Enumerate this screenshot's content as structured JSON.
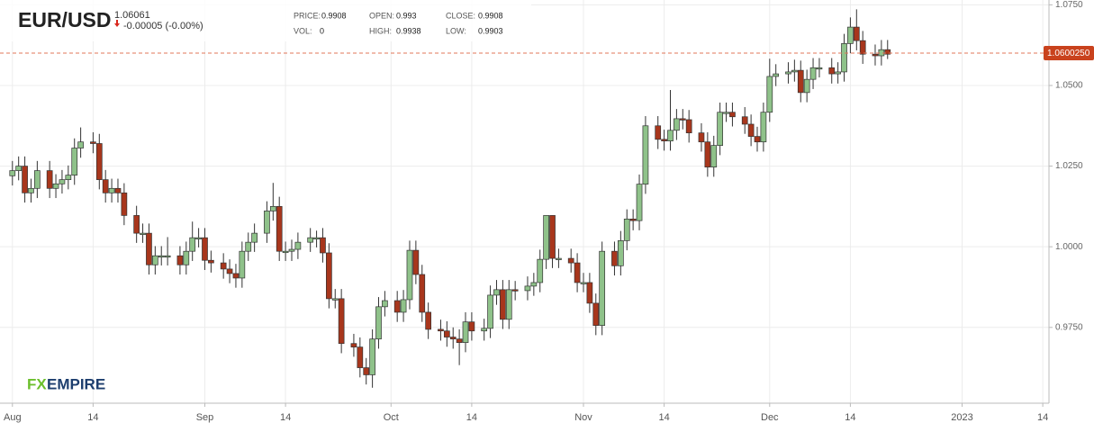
{
  "header": {
    "symbol": "EUR/USD",
    "price": "1.06061",
    "change": "-0.00005 (-0.00%)",
    "stats": [
      {
        "label": "PRICE:",
        "value": "0.9908"
      },
      {
        "label": "OPEN:",
        "value": "0.993"
      },
      {
        "label": "CLOSE:",
        "value": "0.9908"
      },
      {
        "label": "VOL:",
        "value": "0"
      },
      {
        "label": "HIGH:",
        "value": "0.9938"
      },
      {
        "label": "LOW:",
        "value": "0.9903"
      }
    ]
  },
  "logo": [
    "FX",
    "EMPIRE"
  ],
  "chart_data": {
    "type": "candlestick",
    "up_color": "#8fc28a",
    "down_color": "#a8361c",
    "grid": true,
    "last_price": {
      "value": 1.060025,
      "label": "1.0600250"
    },
    "ylim": [
      0.9515,
      1.0765
    ],
    "yticks": [
      {
        "value": 0.975,
        "label": "0.9750"
      },
      {
        "value": 1.0,
        "label": "1.0000"
      },
      {
        "value": 1.025,
        "label": "1.0250"
      },
      {
        "value": 1.05,
        "label": "1.0500"
      },
      {
        "value": 1.075,
        "label": "1.0750"
      }
    ],
    "xlim": [
      "2022-07-30",
      "2023-01-15"
    ],
    "xticks": [
      {
        "value": "2022-08-01",
        "label": "Aug"
      },
      {
        "value": "2022-08-14",
        "label": "14"
      },
      {
        "value": "2022-09-01",
        "label": "Sep"
      },
      {
        "value": "2022-09-14",
        "label": "14"
      },
      {
        "value": "2022-10-01",
        "label": "Oct"
      },
      {
        "value": "2022-10-14",
        "label": "14"
      },
      {
        "value": "2022-11-01",
        "label": "Nov"
      },
      {
        "value": "2022-11-14",
        "label": "14"
      },
      {
        "value": "2022-12-01",
        "label": "Dec"
      },
      {
        "value": "2022-12-14",
        "label": "14"
      },
      {
        "value": "2023-01-01",
        "label": "2023"
      },
      {
        "value": "2023-01-14",
        "label": "14"
      }
    ],
    "x": [
      "2022-08-01",
      "2022-08-02",
      "2022-08-03",
      "2022-08-04",
      "2022-08-05",
      "2022-08-07",
      "2022-08-08",
      "2022-08-09",
      "2022-08-10",
      "2022-08-11",
      "2022-08-12",
      "2022-08-14",
      "2022-08-15",
      "2022-08-16",
      "2022-08-17",
      "2022-08-18",
      "2022-08-19",
      "2022-08-21",
      "2022-08-22",
      "2022-08-23",
      "2022-08-24",
      "2022-08-25",
      "2022-08-26",
      "2022-08-28",
      "2022-08-29",
      "2022-08-30",
      "2022-08-31",
      "2022-09-01",
      "2022-09-02",
      "2022-09-04",
      "2022-09-05",
      "2022-09-06",
      "2022-09-07",
      "2022-09-08",
      "2022-09-09",
      "2022-09-11",
      "2022-09-12",
      "2022-09-13",
      "2022-09-14",
      "2022-09-15",
      "2022-09-16",
      "2022-09-18",
      "2022-09-19",
      "2022-09-20",
      "2022-09-21",
      "2022-09-22",
      "2022-09-23",
      "2022-09-25",
      "2022-09-26",
      "2022-09-27",
      "2022-09-28",
      "2022-09-29",
      "2022-09-30",
      "2022-10-02",
      "2022-10-03",
      "2022-10-04",
      "2022-10-05",
      "2022-10-06",
      "2022-10-07",
      "2022-10-09",
      "2022-10-10",
      "2022-10-11",
      "2022-10-12",
      "2022-10-13",
      "2022-10-14",
      "2022-10-16",
      "2022-10-17",
      "2022-10-18",
      "2022-10-19",
      "2022-10-20",
      "2022-10-21",
      "2022-10-23",
      "2022-10-24",
      "2022-10-25",
      "2022-10-26",
      "2022-10-27",
      "2022-10-28",
      "2022-10-30",
      "2022-10-31",
      "2022-11-01",
      "2022-11-02",
      "2022-11-03",
      "2022-11-04",
      "2022-11-06",
      "2022-11-07",
      "2022-11-08",
      "2022-11-09",
      "2022-11-10",
      "2022-11-11",
      "2022-11-13",
      "2022-11-14",
      "2022-11-15",
      "2022-11-16",
      "2022-11-17",
      "2022-11-18",
      "2022-11-20",
      "2022-11-21",
      "2022-11-22",
      "2022-11-23",
      "2022-11-24",
      "2022-11-25",
      "2022-11-27",
      "2022-11-28",
      "2022-11-29",
      "2022-11-30",
      "2022-12-01",
      "2022-12-02",
      "2022-12-04",
      "2022-12-05",
      "2022-12-06",
      "2022-12-07",
      "2022-12-08",
      "2022-12-09",
      "2022-12-11",
      "2022-12-12",
      "2022-12-13",
      "2022-12-14",
      "2022-12-15",
      "2022-12-16",
      "2022-12-18",
      "2022-12-19",
      "2022-12-20"
    ],
    "open": [
      1.022,
      1.0236,
      1.025,
      1.0167,
      1.0181,
      1.0236,
      1.0181,
      1.0195,
      1.0208,
      1.0222,
      1.0306,
      1.0325,
      1.032,
      1.0208,
      1.0167,
      1.0181,
      1.0167,
      1.0097,
      1.0042,
      1.0042,
      0.9944,
      0.9972,
      0.9972,
      0.9972,
      0.9944,
      0.9986,
      1.0028,
      1.0028,
      0.9958,
      0.995,
      0.9931,
      0.9917,
      0.9903,
      0.9986,
      1.0014,
      1.0042,
      1.0111,
      1.0125,
      0.9986,
      0.9986,
      0.9992,
      1.0014,
      1.0028,
      1.0028,
      0.9981,
      0.9839,
      0.9839,
      0.97,
      0.9689,
      0.9625,
      0.9603,
      0.9714,
      0.9814,
      0.9833,
      0.9797,
      0.9836,
      0.9989,
      0.9914,
      0.9797,
      0.9744,
      0.9739,
      0.972,
      0.9714,
      0.9703,
      0.9767,
      0.9739,
      0.9747,
      0.985,
      0.9867,
      0.9775,
      0.9867,
      0.9864,
      0.9878,
      0.9889,
      0.9961,
      1.0097,
      0.9964,
      0.9964,
      0.995,
      0.9889,
      0.9889,
      0.9825,
      0.9756,
      0.9986,
      0.9941,
      1.0019,
      1.0086,
      1.0081,
      1.0194,
      1.0375,
      1.0333,
      1.0328,
      1.0361,
      1.0397,
      1.0394,
      1.0353,
      1.0325,
      1.0247,
      1.0314,
      1.0417,
      1.0417,
      1.0403,
      1.038,
      1.0342,
      1.0325,
      1.0417,
      1.0528,
      1.0536,
      1.0542,
      1.0547,
      1.0478,
      1.0519,
      1.0555,
      1.0555,
      1.0536,
      1.0542,
      1.063,
      1.0681,
      1.0639,
      1.0597,
      1.0592,
      1.0611
    ],
    "high": [
      1.0266,
      1.028,
      1.028,
      1.0211,
      1.0266,
      1.0266,
      1.0225,
      1.0238,
      1.0252,
      1.0336,
      1.037,
      1.0355,
      1.035,
      1.0238,
      1.0211,
      1.0211,
      1.0197,
      1.0127,
      1.0072,
      1.0072,
      1.0002,
      1.0002,
      1.003,
      1.0002,
      1.0016,
      1.0078,
      1.0058,
      1.0058,
      0.9988,
      0.998,
      0.9961,
      0.9947,
      1.0016,
      1.0044,
      1.0072,
      1.0141,
      1.0198,
      1.0155,
      1.0016,
      1.0022,
      1.0044,
      1.0058,
      1.005,
      1.0058,
      1.0011,
      0.9869,
      0.9869,
      0.973,
      0.9719,
      0.9655,
      0.9744,
      0.9844,
      0.9863,
      0.9863,
      0.9866,
      1.0019,
      1.0019,
      0.9944,
      0.9827,
      0.9774,
      0.9769,
      0.975,
      0.9744,
      0.9797,
      0.9797,
      0.9777,
      0.988,
      0.9897,
      0.9897,
      0.9897,
      0.9894,
      0.9908,
      0.9919,
      0.9991,
      1.0097,
      1.0097,
      0.9994,
      0.9994,
      0.998,
      0.9919,
      0.9919,
      0.9855,
      1.0016,
      1.0016,
      1.0049,
      1.0116,
      1.0116,
      1.0224,
      1.0405,
      1.0405,
      1.0363,
      1.0486,
      1.0427,
      1.0427,
      1.0424,
      1.0383,
      1.0355,
      1.0344,
      1.0447,
      1.0447,
      1.0447,
      1.0433,
      1.041,
      1.0372,
      1.0447,
      1.0583,
      1.0566,
      1.0572,
      1.058,
      1.0577,
      1.0549,
      1.0585,
      1.0585,
      1.0585,
      1.0572,
      1.066,
      1.0711,
      1.0736,
      1.0669,
      1.0627,
      1.0641,
      1.0641
    ],
    "low": [
      1.019,
      1.0206,
      1.0137,
      1.0137,
      1.0151,
      1.0151,
      1.0151,
      1.0165,
      1.0178,
      1.0192,
      1.0276,
      1.029,
      1.0178,
      1.0137,
      1.0137,
      1.0137,
      1.0067,
      1.0012,
      1.0012,
      0.9914,
      0.9914,
      0.9942,
      0.9942,
      0.9914,
      0.9914,
      0.9956,
      0.9998,
      0.9928,
      0.992,
      0.9901,
      0.9887,
      0.9873,
      0.9873,
      0.9956,
      0.9984,
      1.0012,
      1.0081,
      0.9956,
      0.9956,
      0.9956,
      0.9962,
      0.9984,
      0.9998,
      0.9951,
      0.9809,
      0.9809,
      0.967,
      0.9659,
      0.9595,
      0.9573,
      0.9563,
      0.9684,
      0.9784,
      0.9767,
      0.9767,
      0.9806,
      0.9884,
      0.9767,
      0.9714,
      0.9709,
      0.969,
      0.9684,
      0.9633,
      0.9673,
      0.9709,
      0.9709,
      0.9717,
      0.982,
      0.9745,
      0.9745,
      0.9834,
      0.9834,
      0.9848,
      0.9859,
      0.9931,
      0.9934,
      0.9934,
      0.992,
      0.9859,
      0.9859,
      0.9795,
      0.9726,
      0.9726,
      0.9911,
      0.9911,
      0.9989,
      1.0051,
      1.0051,
      1.0164,
      1.0303,
      1.0298,
      1.0298,
      1.0331,
      1.0364,
      1.0323,
      1.0295,
      1.0217,
      1.0217,
      1.0284,
      1.0387,
      1.0373,
      1.035,
      1.0312,
      1.0295,
      1.0295,
      1.0387,
      1.0498,
      1.0506,
      1.0512,
      1.0448,
      1.0448,
      1.0489,
      1.0525,
      1.0506,
      1.0506,
      1.0512,
      1.06,
      1.0609,
      1.0567,
      1.0562,
      1.0562,
      1.0582
    ],
    "close": [
      1.0236,
      1.025,
      1.0167,
      1.0181,
      1.0236,
      1.0181,
      1.0195,
      1.0208,
      1.0222,
      1.0306,
      1.0325,
      1.032,
      1.0208,
      1.0167,
      1.0181,
      1.0167,
      1.0097,
      1.0042,
      1.0042,
      0.9944,
      0.9972,
      0.9972,
      0.9972,
      0.9944,
      0.9986,
      1.0028,
      1.0028,
      0.9958,
      0.995,
      0.9931,
      0.9917,
      0.9903,
      0.9986,
      1.0014,
      1.0042,
      1.0111,
      1.0125,
      0.9986,
      0.9986,
      0.9992,
      1.0014,
      1.0028,
      1.0028,
      0.9981,
      0.9839,
      0.9839,
      0.97,
      0.9689,
      0.9625,
      0.9603,
      0.9714,
      0.9814,
      0.9833,
      0.9797,
      0.9836,
      0.9989,
      0.9914,
      0.9797,
      0.9744,
      0.9739,
      0.972,
      0.9714,
      0.9703,
      0.9767,
      0.9739,
      0.9747,
      0.985,
      0.9867,
      0.9775,
      0.9867,
      0.9864,
      0.9878,
      0.9889,
      0.9961,
      1.0097,
      0.9964,
      0.9964,
      0.995,
      0.9889,
      0.9889,
      0.9825,
      0.9756,
      0.9986,
      0.9941,
      1.0019,
      1.0086,
      1.0081,
      1.0194,
      1.0375,
      1.0333,
      1.0328,
      1.0361,
      1.0397,
      1.0394,
      1.0353,
      1.0325,
      1.0247,
      1.0314,
      1.0417,
      1.0417,
      1.0403,
      1.038,
      1.0342,
      1.0325,
      1.0417,
      1.0528,
      1.0536,
      1.0542,
      1.0547,
      1.0478,
      1.0519,
      1.0555,
      1.0555,
      1.0536,
      1.0542,
      1.063,
      1.0681,
      1.0639,
      1.0597,
      1.0592,
      1.0611,
      1.0597
    ]
  }
}
